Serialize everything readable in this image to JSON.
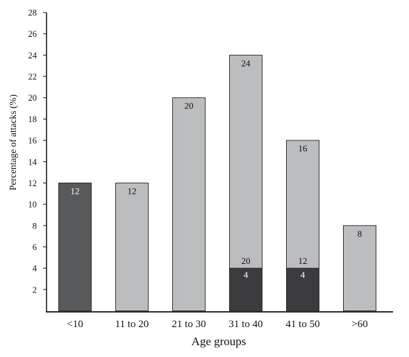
{
  "chart_data": {
    "type": "bar",
    "stacked": true,
    "title": "",
    "xlabel": "Age groups",
    "ylabel": "Percentage of attacks (%)",
    "ylim": [
      0,
      28
    ],
    "yticks": [
      2,
      4,
      6,
      8,
      10,
      12,
      14,
      16,
      18,
      20,
      22,
      24,
      26,
      28
    ],
    "grid": false,
    "legend": "none",
    "categories": [
      "<10",
      "11 to 20",
      "21 to 30",
      "31 to 40",
      "41 to 50",
      ">60"
    ],
    "series": [
      {
        "color": "#3c3c3e",
        "values": [
          12,
          0,
          0,
          4,
          4,
          0
        ],
        "labels": [
          "12",
          "",
          "",
          "4",
          "4",
          ""
        ]
      },
      {
        "color": "#bcbdbf",
        "values": [
          0,
          12,
          20,
          20,
          12,
          8
        ],
        "labels": [
          "",
          "12",
          "20",
          "20",
          "12",
          "8"
        ]
      }
    ],
    "totals": [
      "",
      "",
      "",
      "24",
      "16",
      ""
    ],
    "first_bar_color": "#58595b"
  }
}
